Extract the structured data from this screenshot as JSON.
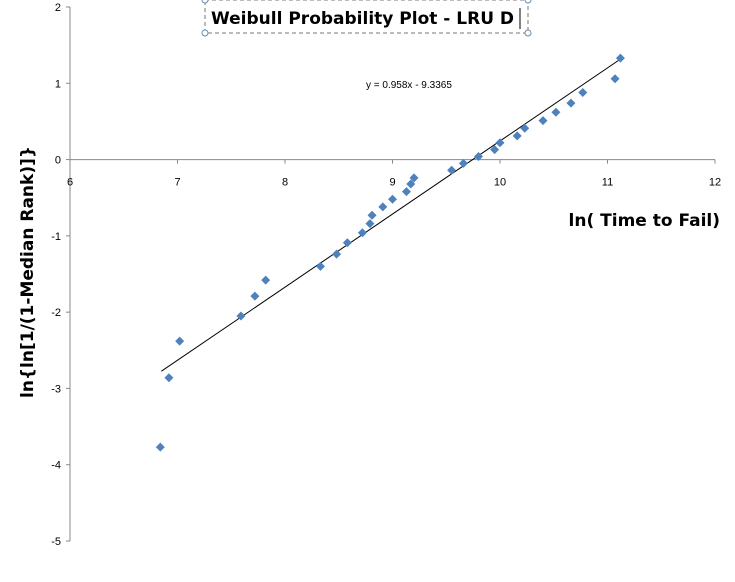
{
  "chart_data": {
    "type": "scatter",
    "title": "Weibull Probability Plot - LRU D",
    "xlabel": "ln( Time to Fail)",
    "ylabel": "ln{ln[1/(1-Median Rank)]}",
    "xlim": [
      6,
      12
    ],
    "ylim": [
      -5,
      2
    ],
    "x_ticks": [
      "6",
      "7",
      "8",
      "9",
      "10",
      "11",
      "12"
    ],
    "y_ticks": [
      "2",
      "1",
      "0",
      "-1",
      "-2",
      "-3",
      "-4",
      "-5"
    ],
    "grid": false,
    "legend": "none",
    "marker_color": "#4f81bd",
    "trendline": {
      "equation_label": "y = 0.958x - 9.3365",
      "slope": 0.958,
      "intercept": -9.3365,
      "x_range": [
        6.85,
        11.12
      ],
      "color": "#000000"
    },
    "series": [
      {
        "points": [
          [
            6.84,
            -3.77
          ],
          [
            6.92,
            -2.86
          ],
          [
            7.02,
            -2.38
          ],
          [
            7.59,
            -2.05
          ],
          [
            7.72,
            -1.79
          ],
          [
            7.82,
            -1.58
          ],
          [
            8.33,
            -1.4
          ],
          [
            8.48,
            -1.24
          ],
          [
            8.58,
            -1.09
          ],
          [
            8.72,
            -0.96
          ],
          [
            8.79,
            -0.84
          ],
          [
            8.81,
            -0.73
          ],
          [
            8.91,
            -0.62
          ],
          [
            9.0,
            -0.52
          ],
          [
            9.13,
            -0.42
          ],
          [
            9.17,
            -0.32
          ],
          [
            9.2,
            -0.24
          ],
          [
            9.55,
            -0.14
          ],
          [
            9.66,
            -0.05
          ],
          [
            9.8,
            0.04
          ],
          [
            9.95,
            0.13
          ],
          [
            10.0,
            0.22
          ],
          [
            10.16,
            0.31
          ],
          [
            10.23,
            0.41
          ],
          [
            10.4,
            0.51
          ],
          [
            10.52,
            0.62
          ],
          [
            10.66,
            0.74
          ],
          [
            10.77,
            0.88
          ],
          [
            11.07,
            1.06
          ],
          [
            11.12,
            1.33
          ]
        ]
      }
    ]
  }
}
